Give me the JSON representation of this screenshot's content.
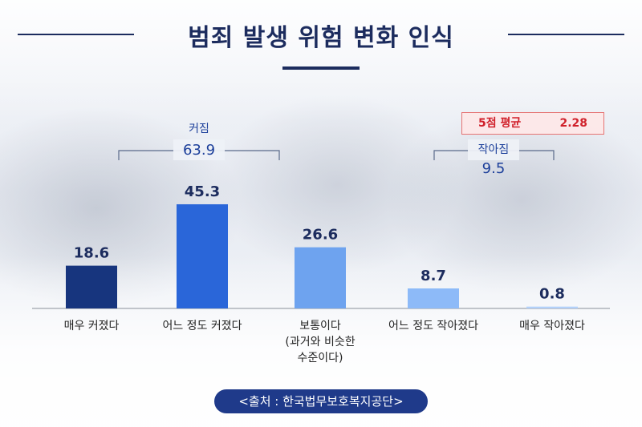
{
  "title": "범죄 발생 위험 변화 인식",
  "source": "<출처 : 한국법무보호복지공단>",
  "average": {
    "label": "5점 평균",
    "value": "2.28"
  },
  "groups": [
    {
      "label": "커짐",
      "value": "63.9"
    },
    {
      "label": "작아짐",
      "value": "9.5"
    }
  ],
  "chart_data": {
    "type": "bar",
    "categories": [
      "매우 커졌다",
      "어느 정도 커졌다",
      "보통이다\n(과거와 비슷한\n수준이다)",
      "어느 정도 작아졌다",
      "매우 작아졌다"
    ],
    "values": [
      18.6,
      45.3,
      26.6,
      8.7,
      0.8
    ],
    "colors": [
      "#17357e",
      "#2a66d9",
      "#6ea3ef",
      "#8dbaf8",
      "#b3d1fa"
    ],
    "title": "범죄 발생 위험 변화 인식",
    "xlabel": "",
    "ylabel": "",
    "grid": false
  }
}
